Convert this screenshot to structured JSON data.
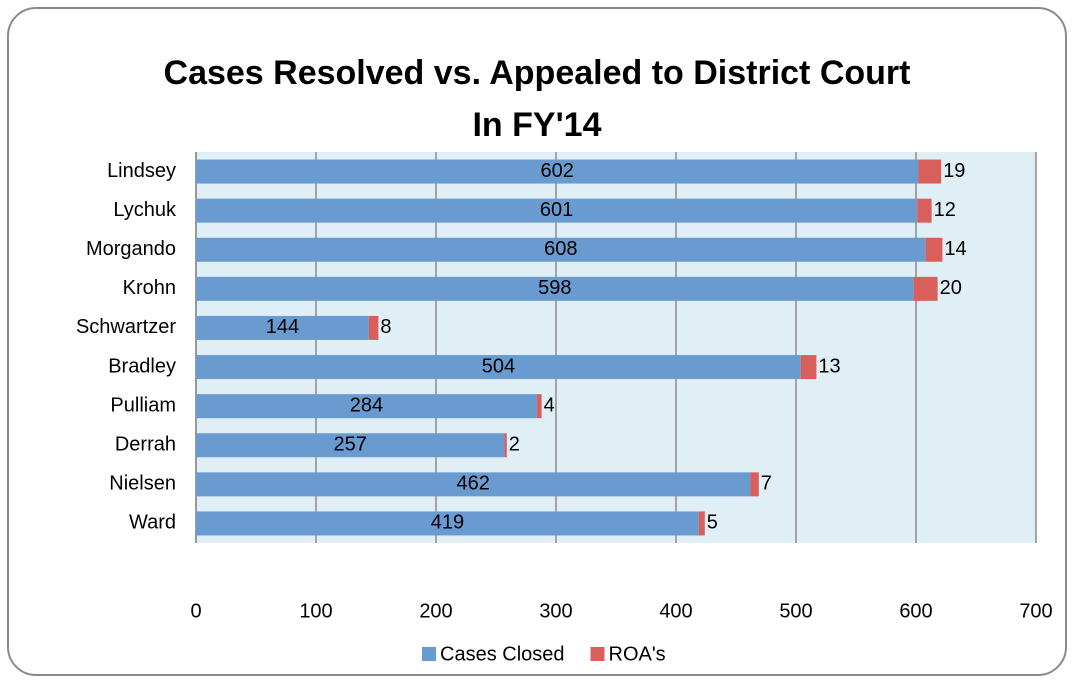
{
  "chart_data": {
    "type": "stacked-bar-horizontal",
    "title": [
      "Cases Resolved vs. Appealed to District Court",
      "In FY'14"
    ],
    "categories": [
      "Lindsey",
      "Lychuk",
      "Morgando",
      "Krohn",
      "Schwartzer",
      "Bradley",
      "Pulliam",
      "Derrah",
      "Nielsen",
      "Ward"
    ],
    "series": [
      {
        "name": "Cases Closed",
        "color": "#6a9bd0",
        "values": [
          602,
          601,
          608,
          598,
          144,
          504,
          284,
          257,
          462,
          419
        ]
      },
      {
        "name": "ROA's",
        "color": "#d9605a",
        "values": [
          19,
          12,
          14,
          20,
          8,
          13,
          4,
          2,
          7,
          5
        ]
      }
    ],
    "xlim": [
      0,
      700
    ],
    "xticks": [
      0,
      100,
      200,
      300,
      400,
      500,
      600,
      700
    ],
    "grid": true,
    "legend": "bottom"
  }
}
